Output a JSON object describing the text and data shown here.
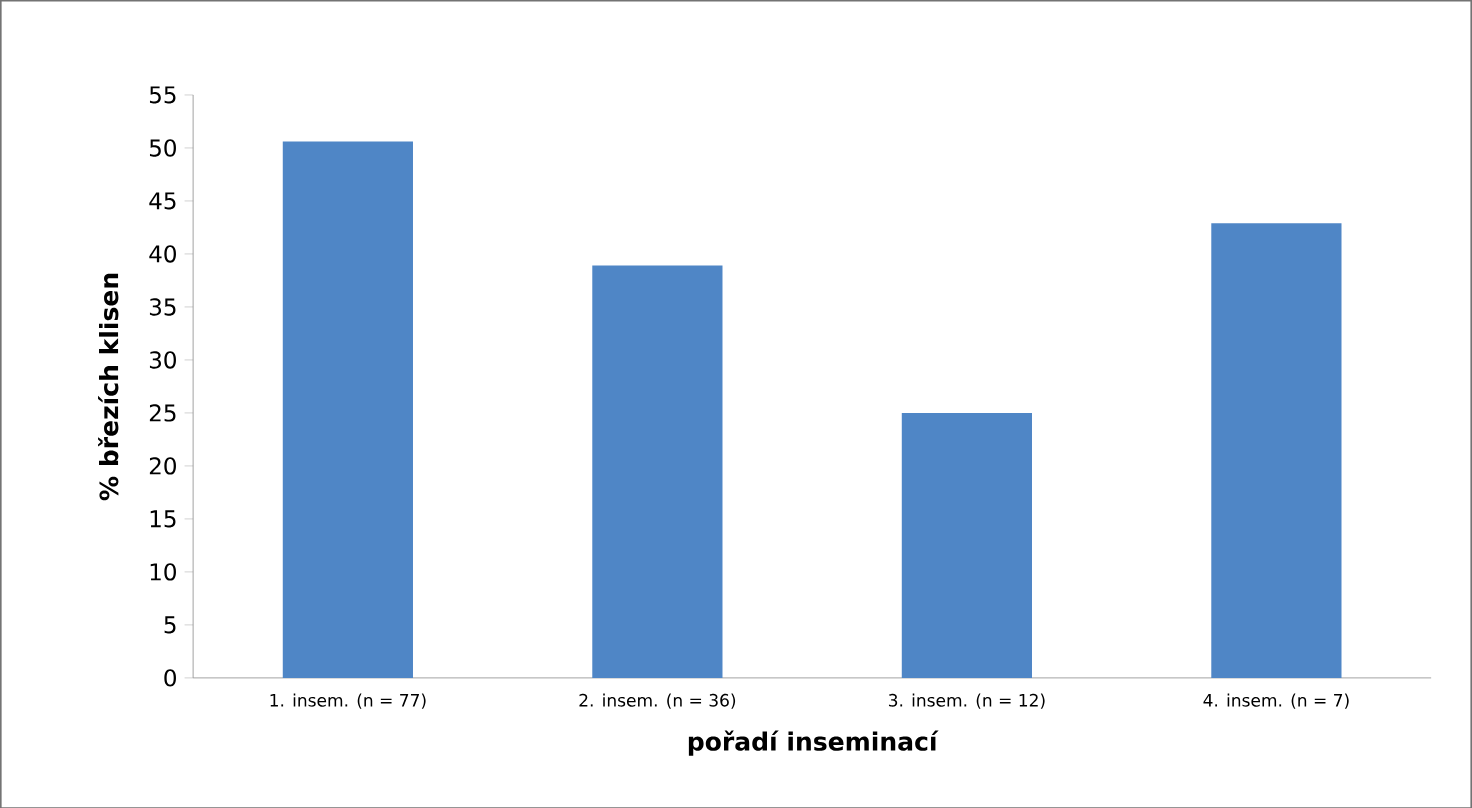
{
  "chart_data": {
    "type": "bar",
    "xlabel": "pořadí inseminací",
    "ylabel": "% březích klisen",
    "categories": [
      "1. insem. (n = 77)",
      "2. insem. (n = 36)",
      "3. insem. (n = 12)",
      "4. insem.  (n = 7)"
    ],
    "values": [
      50.6,
      38.9,
      25,
      42.9
    ],
    "color": "#4f86c6",
    "ylim": [
      0,
      55
    ],
    "yticks": [
      0,
      5,
      10,
      15,
      20,
      25,
      30,
      35,
      40,
      45,
      50,
      55
    ]
  }
}
